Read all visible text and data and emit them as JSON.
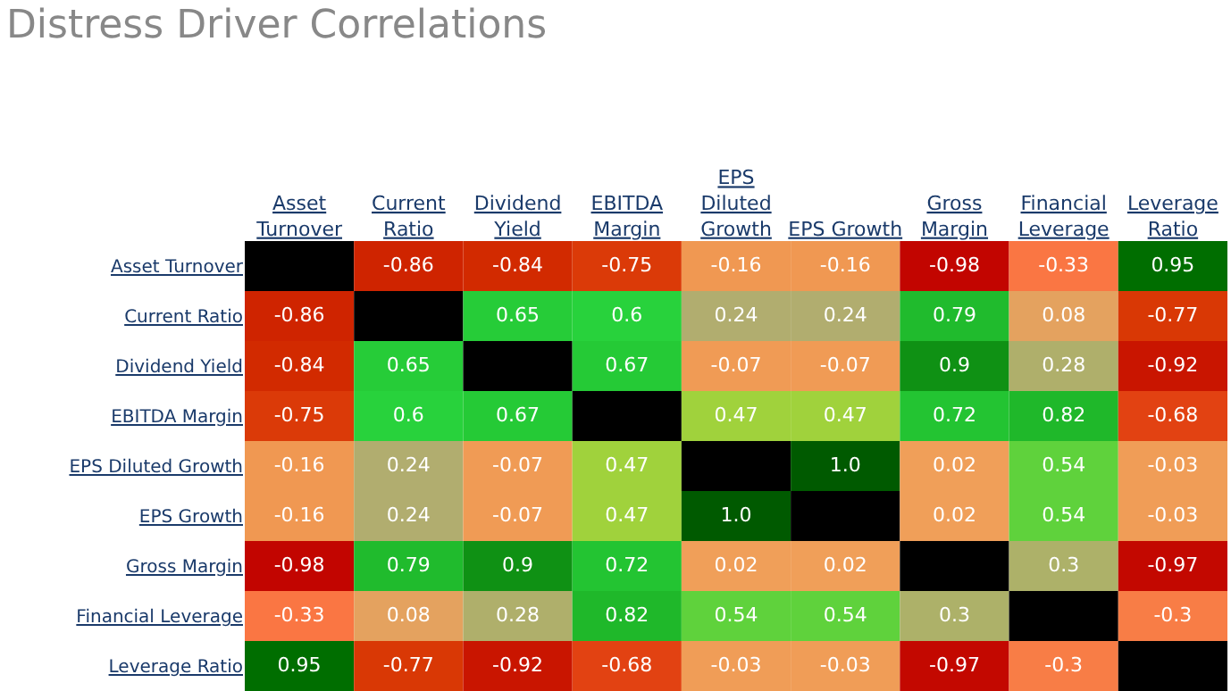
{
  "chart_data": {
    "type": "heatmap",
    "title": "Distress Driver Correlations",
    "categories": [
      "Asset Turnover",
      "Current Ratio",
      "Dividend Yield",
      "EBITDA Margin",
      "EPS Diluted Growth",
      "EPS Growth",
      "Gross Margin",
      "Financial Leverage",
      "Leverage Ratio"
    ],
    "y_categories": [
      "Asset Turnover",
      "Current Ratio",
      "Dividend Yield",
      "EBITDA Margin",
      "EPS Diluted Growth",
      "EPS Growth",
      "Gross Margin",
      "Financial Leverage",
      "Leverage Ratio"
    ],
    "cells": [
      [
        null,
        -0.86,
        -0.84,
        -0.75,
        -0.16,
        -0.16,
        -0.98,
        -0.33,
        0.95
      ],
      [
        -0.86,
        null,
        0.65,
        0.6,
        0.24,
        0.24,
        0.79,
        0.08,
        -0.77
      ],
      [
        -0.84,
        0.65,
        null,
        0.67,
        -0.07,
        -0.07,
        0.9,
        0.28,
        -0.92
      ],
      [
        -0.75,
        0.6,
        0.67,
        null,
        0.47,
        0.47,
        0.72,
        0.82,
        -0.68
      ],
      [
        -0.16,
        0.24,
        -0.07,
        0.47,
        null,
        1.0,
        0.02,
        0.54,
        -0.03
      ],
      [
        -0.16,
        0.24,
        -0.07,
        0.47,
        1.0,
        null,
        0.02,
        0.54,
        -0.03
      ],
      [
        -0.98,
        0.79,
        0.9,
        0.72,
        0.02,
        0.02,
        null,
        0.3,
        -0.97
      ],
      [
        -0.33,
        0.08,
        0.28,
        0.82,
        0.54,
        0.54,
        0.3,
        null,
        -0.3
      ],
      [
        0.95,
        -0.77,
        -0.92,
        -0.68,
        -0.03,
        -0.03,
        -0.97,
        -0.3,
        null
      ]
    ],
    "cell_labels": [
      [
        null,
        "-0.86",
        "-0.84",
        "-0.75",
        "-0.16",
        "-0.16",
        "-0.98",
        "-0.33",
        "0.95"
      ],
      [
        "-0.86",
        null,
        "0.65",
        "0.6",
        "0.24",
        "0.24",
        "0.79",
        "0.08",
        "-0.77"
      ],
      [
        "-0.84",
        "0.65",
        null,
        "0.67",
        "-0.07",
        "-0.07",
        "0.9",
        "0.28",
        "-0.92"
      ],
      [
        "-0.75",
        "0.6",
        "0.67",
        null,
        "0.47",
        "0.47",
        "0.72",
        "0.82",
        "-0.68"
      ],
      [
        "-0.16",
        "0.24",
        "-0.07",
        "0.47",
        null,
        "1.0",
        "0.02",
        "0.54",
        "-0.03"
      ],
      [
        "-0.16",
        "0.24",
        "-0.07",
        "0.47",
        "1.0",
        null,
        "0.02",
        "0.54",
        "-0.03"
      ],
      [
        "-0.98",
        "0.79",
        "0.9",
        "0.72",
        "0.02",
        "0.02",
        null,
        "0.3",
        "-0.97"
      ],
      [
        "-0.33",
        "0.08",
        "0.28",
        "0.82",
        "0.54",
        "0.54",
        "0.3",
        null,
        "-0.3"
      ],
      [
        "0.95",
        "-0.77",
        "-0.92",
        "-0.68",
        "-0.03",
        "-0.03",
        "-0.97",
        "-0.3",
        null
      ]
    ]
  }
}
